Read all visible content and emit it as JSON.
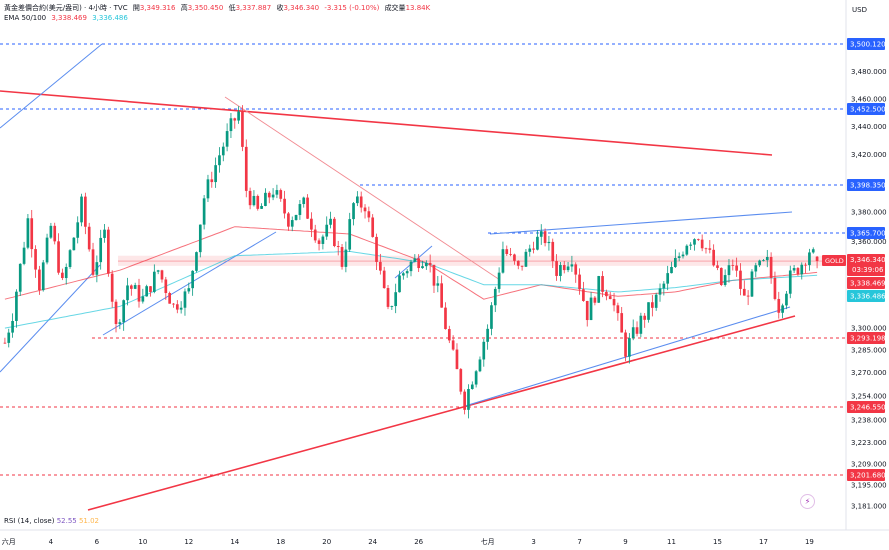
{
  "header": {
    "symbol_title": "黃金差價合約(美元/盎司) · 4小時 · TVC",
    "open_label": "開",
    "open_value": "3,349.316",
    "high_label": "高",
    "high_value": "3,350.450",
    "low_label": "低",
    "low_value": "3,337.887",
    "close_label": "收",
    "close_value": "3,346.340",
    "change": "-3.315 (-0.10%)",
    "volume_label": "成交量",
    "volume_value": "13.84K",
    "ema_label": "EMA 50/100",
    "ema50_value": "3,338.469",
    "ema100_value": "3,336.486",
    "ema50_color": "#f23645",
    "ema100_color": "#26c6da"
  },
  "rsi": {
    "label": "RSI (14, close)",
    "value1": "52.55",
    "value2": "51.02",
    "color1": "#7e57c2",
    "color2": "#ffb74d"
  },
  "currency": "USD",
  "colors": {
    "up": "#089981",
    "down": "#f23645",
    "trend_red": "#f23645",
    "trend_blue": "#5b8def",
    "level": "#2962ff",
    "support": "#f23645"
  },
  "chart_data": {
    "type": "candlestick",
    "y_range": [
      3176,
      3520
    ],
    "y_ticks": [
      "3,500.120",
      "3,480.000",
      "3,460.000",
      "3,452.500",
      "3,440.000",
      "3,420.000",
      "3,398.350",
      "3,380.000",
      "3,365.700",
      "3,360.000",
      "3,346.340",
      "3,338.469",
      "3,336.486",
      "3,300.000",
      "3,293.198",
      "3,285.000",
      "3,270.000",
      "3,254.000",
      "3,246.550",
      "3,238.000",
      "3,223.000",
      "3,209.000",
      "3,201.680",
      "3,195.000",
      "3,181.000"
    ],
    "x_tick_labels": [
      {
        "label": "六月",
        "i": 1
      },
      {
        "label": "4",
        "i": 12
      },
      {
        "label": "6",
        "i": 24
      },
      {
        "label": "10",
        "i": 36
      },
      {
        "label": "12",
        "i": 48
      },
      {
        "label": "14",
        "i": 60
      },
      {
        "label": "18",
        "i": 72
      },
      {
        "label": "20",
        "i": 84
      },
      {
        "label": "24",
        "i": 96
      },
      {
        "label": "26",
        "i": 108
      },
      {
        "label": "七月",
        "i": 126
      },
      {
        "label": "3",
        "i": 138
      },
      {
        "label": "7",
        "i": 150
      },
      {
        "label": "9",
        "i": 162
      },
      {
        "label": "11",
        "i": 174
      },
      {
        "label": "15",
        "i": 186
      },
      {
        "label": "17",
        "i": 198
      },
      {
        "label": "19",
        "i": 210
      }
    ],
    "candle_count": 213,
    "anchors": [
      [
        0,
        3290
      ],
      [
        2,
        3310
      ],
      [
        6,
        3375
      ],
      [
        9,
        3330
      ],
      [
        12,
        3370
      ],
      [
        15,
        3330
      ],
      [
        20,
        3385
      ],
      [
        23,
        3340
      ],
      [
        26,
        3365
      ],
      [
        29,
        3300
      ],
      [
        32,
        3330
      ],
      [
        36,
        3320
      ],
      [
        40,
        3340
      ],
      [
        44,
        3315
      ],
      [
        48,
        3325
      ],
      [
        52,
        3390
      ],
      [
        56,
        3420
      ],
      [
        59,
        3440
      ],
      [
        61,
        3450
      ],
      [
        63,
        3395
      ],
      [
        66,
        3380
      ],
      [
        70,
        3395
      ],
      [
        74,
        3375
      ],
      [
        78,
        3385
      ],
      [
        82,
        3360
      ],
      [
        85,
        3370
      ],
      [
        88,
        3345
      ],
      [
        91,
        3385
      ],
      [
        94,
        3385
      ],
      [
        97,
        3350
      ],
      [
        100,
        3310
      ],
      [
        103,
        3335
      ],
      [
        106,
        3345
      ],
      [
        110,
        3350
      ],
      [
        113,
        3325
      ],
      [
        116,
        3290
      ],
      [
        120,
        3250
      ],
      [
        123,
        3275
      ],
      [
        126,
        3300
      ],
      [
        130,
        3355
      ],
      [
        134,
        3340
      ],
      [
        138,
        3360
      ],
      [
        141,
        3362
      ],
      [
        144,
        3340
      ],
      [
        148,
        3350
      ],
      [
        152,
        3310
      ],
      [
        155,
        3330
      ],
      [
        158,
        3325
      ],
      [
        162,
        3285
      ],
      [
        166,
        3305
      ],
      [
        170,
        3320
      ],
      [
        174,
        3340
      ],
      [
        178,
        3360
      ],
      [
        181,
        3365
      ],
      [
        184,
        3350
      ],
      [
        187,
        3330
      ],
      [
        190,
        3345
      ],
      [
        193,
        3320
      ],
      [
        196,
        3340
      ],
      [
        199,
        3345
      ],
      [
        202,
        3315
      ],
      [
        205,
        3335
      ],
      [
        208,
        3345
      ],
      [
        210,
        3354
      ],
      [
        212,
        3346
      ]
    ],
    "ema50_anchors": [
      [
        0,
        3320
      ],
      [
        30,
        3340
      ],
      [
        60,
        3370
      ],
      [
        90,
        3365
      ],
      [
        110,
        3345
      ],
      [
        125,
        3320
      ],
      [
        140,
        3330
      ],
      [
        160,
        3322
      ],
      [
        175,
        3325
      ],
      [
        190,
        3333
      ],
      [
        212,
        3338.469
      ]
    ],
    "ema100_anchors": [
      [
        0,
        3300
      ],
      [
        30,
        3315
      ],
      [
        60,
        3350
      ],
      [
        90,
        3353
      ],
      [
        110,
        3345
      ],
      [
        125,
        3330
      ],
      [
        140,
        3330
      ],
      [
        160,
        3325
      ],
      [
        175,
        3328
      ],
      [
        190,
        3333
      ],
      [
        212,
        3336.486
      ]
    ],
    "horizontal_levels": [
      {
        "value": 3500.12,
        "label": "3,500.120",
        "style": "level"
      },
      {
        "value": 3452.5,
        "label": "3,452.500",
        "style": "level"
      },
      {
        "value": 3398.35,
        "label": "3,398.350",
        "style": "level"
      },
      {
        "value": 3365.7,
        "label": "3,365.700",
        "style": "level"
      },
      {
        "value": 3293.198,
        "label": "3,293.198",
        "style": "support"
      },
      {
        "value": 3246.55,
        "label": "3,246.550",
        "style": "support"
      },
      {
        "value": 3201.68,
        "label": "3,201.680",
        "style": "support"
      }
    ],
    "last_price": {
      "symbol": "GOLD",
      "value": 3346.34,
      "label": "3,346.340",
      "countdown": "03:39:06"
    },
    "ema_tags": [
      {
        "value": 3338.469,
        "label": "3,338.469",
        "color": "#f23645"
      },
      {
        "value": 3336.486,
        "label": "3,336.486",
        "color": "#26c6da"
      }
    ],
    "price_labels_regular": [
      "3,480.000",
      "3,460.000",
      "3,440.000",
      "3,420.000",
      "3,380.000",
      "3,360.000",
      "3,300.000",
      "3,285.000",
      "3,270.000",
      "3,254.000",
      "3,238.000",
      "3,223.000",
      "3,209.000",
      "3,195.000",
      "3,181.000"
    ]
  }
}
